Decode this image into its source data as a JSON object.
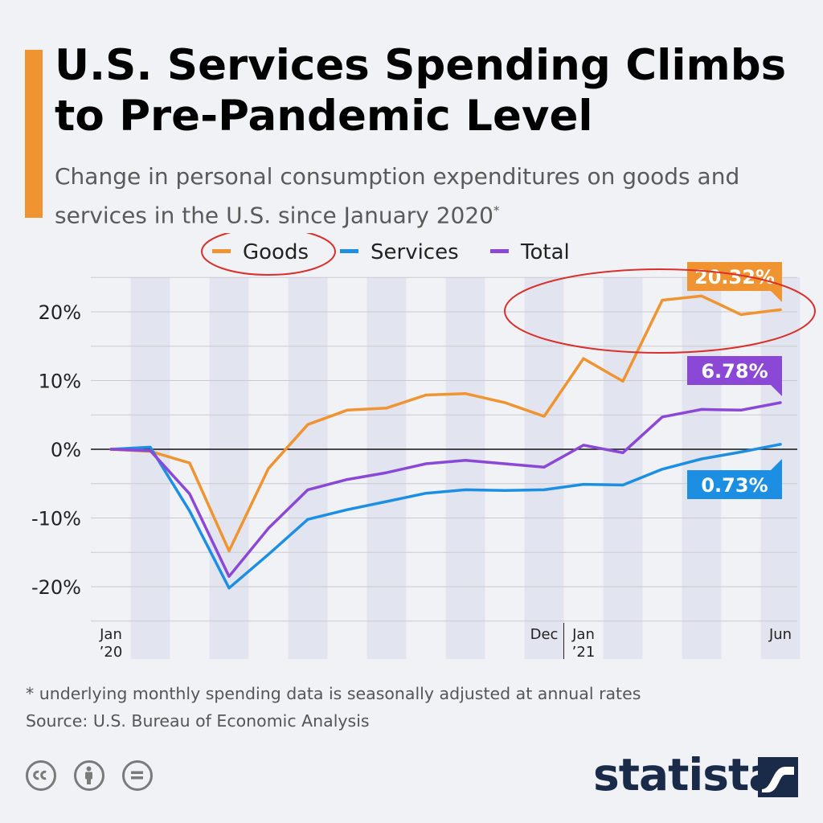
{
  "header": {
    "title": "U.S. Services Spending Climbs to Pre-Pandemic Level",
    "subtitle": "Change in personal consumption expenditures on goods and services in the U.S. since January 2020",
    "subtitle_marker": "*"
  },
  "chart_data": {
    "type": "line",
    "x": [
      "Jan 2020",
      "Feb 2020",
      "Mar 2020",
      "Apr 2020",
      "May 2020",
      "Jun 2020",
      "Jul 2020",
      "Aug 2020",
      "Sep 2020",
      "Oct 2020",
      "Nov 2020",
      "Dec 2020",
      "Jan 2021",
      "Feb 2021",
      "Mar 2021",
      "Apr 2021",
      "May 2021",
      "Jun 2021"
    ],
    "series": [
      {
        "name": "Goods",
        "color": "#f09432",
        "values": [
          0,
          -0.3,
          -2.0,
          -14.8,
          -2.8,
          3.6,
          5.7,
          6.0,
          7.9,
          8.1,
          6.8,
          4.8,
          13.2,
          9.9,
          21.7,
          22.3,
          19.6,
          20.32
        ]
      },
      {
        "name": "Services",
        "color": "#1c8fe3",
        "values": [
          0,
          0.3,
          -9.0,
          -20.2,
          -15.3,
          -10.2,
          -8.8,
          -7.6,
          -6.4,
          -5.9,
          -6.0,
          -5.9,
          -5.1,
          -5.2,
          -2.9,
          -1.4,
          -0.4,
          0.73
        ]
      },
      {
        "name": "Total",
        "color": "#8b48d6",
        "values": [
          0,
          -0.2,
          -6.5,
          -18.5,
          -11.5,
          -5.9,
          -4.4,
          -3.4,
          -2.1,
          -1.6,
          -2.1,
          -2.6,
          0.6,
          -0.5,
          4.7,
          5.8,
          5.7,
          6.78
        ]
      }
    ],
    "ylim": [
      -25,
      25
    ],
    "yticks": [
      -20,
      -10,
      0,
      10,
      20
    ],
    "ytick_labels": [
      "-20%",
      "-10%",
      "0%",
      "10%",
      "20%"
    ],
    "xtick_labels": [
      {
        "index": 0,
        "lines": [
          "Jan",
          "’20"
        ]
      },
      {
        "index": 11,
        "lines": [
          "Dec"
        ]
      },
      {
        "index": 12,
        "lines": [
          "Jan",
          "’21"
        ]
      },
      {
        "index": 17,
        "lines": [
          "Jun"
        ]
      }
    ],
    "end_labels": {
      "Goods": "20.32%",
      "Services": "0.73%",
      "Total": "6.78%"
    },
    "legend_position": "top-center",
    "grid": true
  },
  "footer": {
    "footnote": "* underlying monthly spending data is seasonally adjusted at annual rates",
    "source": "Source: U.S. Bureau of Economic Analysis",
    "brand": "statista"
  },
  "icons": [
    "cc-icon",
    "attribution-icon",
    "no-derivatives-icon",
    "statista-logo-mark"
  ]
}
